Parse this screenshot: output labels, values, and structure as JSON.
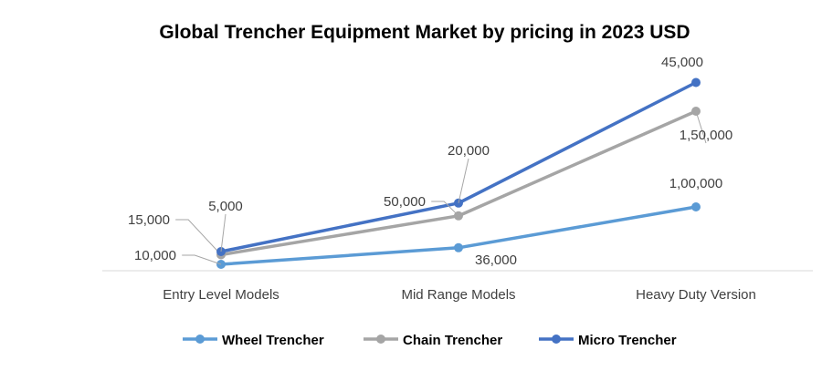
{
  "chart_data": {
    "type": "line",
    "stacked": true,
    "title": "Global Trencher Equipment Market by pricing in 2023 USD",
    "categories": [
      "Entry Level Models",
      "Mid Range Models",
      "Heavy Duty Version"
    ],
    "series": [
      {
        "name": "Wheel Trencher",
        "values": [
          10000,
          36000,
          100000
        ],
        "labels": [
          "10,000",
          "36,000",
          "1,00,000"
        ],
        "color": "#5B9BD5"
      },
      {
        "name": "Chain Trencher",
        "values": [
          15000,
          50000,
          150000
        ],
        "labels": [
          "15,000",
          "50,000",
          "1,50,000"
        ],
        "color": "#A5A5A5"
      },
      {
        "name": "Micro Trencher",
        "values": [
          5000,
          20000,
          45000
        ],
        "labels": [
          "5,000",
          "20,000",
          "45,000"
        ],
        "color": "#4472C4"
      }
    ],
    "ylim": [
      0,
      350000
    ],
    "grid": false,
    "legend": "bottom"
  }
}
